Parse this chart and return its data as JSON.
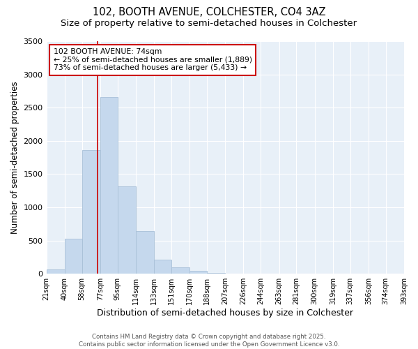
{
  "title1": "102, BOOTH AVENUE, COLCHESTER, CO4 3AZ",
  "title2": "Size of property relative to semi-detached houses in Colchester",
  "xlabel": "Distribution of semi-detached houses by size in Colchester",
  "ylabel": "Number of semi-detached properties",
  "bin_edges": [
    21,
    40,
    58,
    77,
    95,
    114,
    133,
    151,
    170,
    188,
    207,
    226,
    244,
    263,
    281,
    300,
    319,
    337,
    356,
    374,
    393
  ],
  "bar_heights": [
    60,
    530,
    1860,
    2660,
    1320,
    640,
    210,
    100,
    40,
    15,
    5,
    2,
    1,
    0,
    0,
    0,
    0,
    0,
    0,
    0
  ],
  "bar_color": "#c5d8ed",
  "bar_edge_color": "#a8c0d8",
  "red_line_x": 74,
  "annotation_title": "102 BOOTH AVENUE: 74sqm",
  "annotation_line1": "← 25% of semi-detached houses are smaller (1,889)",
  "annotation_line2": "73% of semi-detached houses are larger (5,433) →",
  "annotation_box_facecolor": "#ffffff",
  "annotation_box_edgecolor": "#cc0000",
  "red_line_color": "#cc0000",
  "ylim": [
    0,
    3500
  ],
  "xlim": [
    21,
    393
  ],
  "background_color": "#ffffff",
  "plot_bg_color": "#e8f0f8",
  "footer1": "Contains HM Land Registry data © Crown copyright and database right 2025.",
  "footer2": "Contains public sector information licensed under the Open Government Licence v3.0.",
  "grid_color": "#ffffff",
  "title_fontsize": 10.5,
  "subtitle_fontsize": 9.5,
  "tick_fontsize": 7,
  "ylabel_fontsize": 8.5,
  "xlabel_fontsize": 9,
  "yticks": [
    0,
    500,
    1000,
    1500,
    2000,
    2500,
    3000,
    3500
  ]
}
